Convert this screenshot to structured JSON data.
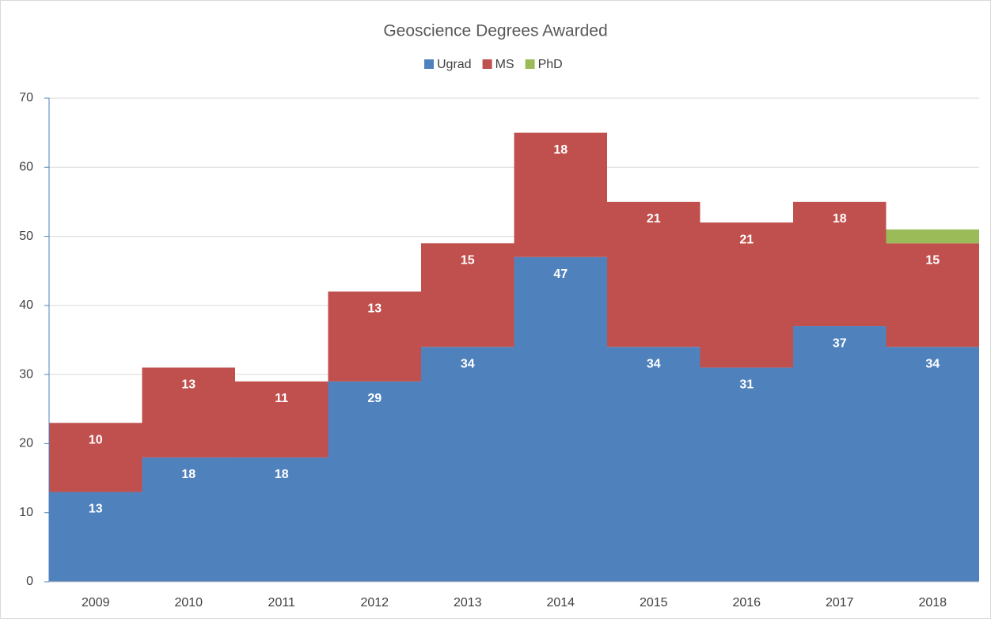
{
  "chart_data": {
    "type": "stacked_bar",
    "title": "Geoscience Degrees Awarded",
    "categories": [
      "2009",
      "2010",
      "2011",
      "2012",
      "2013",
      "2014",
      "2015",
      "2016",
      "2017",
      "2018"
    ],
    "series": [
      {
        "name": "Ugrad",
        "color": "#4f81bd",
        "data_labels": true,
        "values": [
          13,
          18,
          18,
          29,
          34,
          47,
          34,
          31,
          37,
          34
        ]
      },
      {
        "name": "MS",
        "color": "#c0504d",
        "data_labels": true,
        "values": [
          10,
          13,
          11,
          13,
          15,
          18,
          21,
          21,
          18,
          15
        ]
      },
      {
        "name": "PhD",
        "color": "#9bbb59",
        "data_labels": false,
        "values": [
          0,
          0,
          0,
          0,
          0,
          0,
          0,
          0,
          0,
          2
        ]
      }
    ],
    "ylim": [
      0,
      70
    ],
    "yticks": [
      0,
      10,
      20,
      30,
      40,
      50,
      60,
      70
    ],
    "grid": true,
    "legend": "top"
  }
}
